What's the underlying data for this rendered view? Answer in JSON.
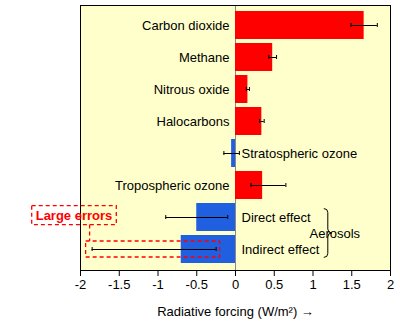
{
  "chart_data": {
    "type": "bar",
    "orientation": "horizontal",
    "categories": [
      "Carbon dioxide",
      "Methane",
      "Nitrous oxide",
      "Halocarbons",
      "Stratospheric ozone",
      "Tropospheric ozone",
      "Direct effect",
      "Indirect effect"
    ],
    "values": [
      1.66,
      0.48,
      0.16,
      0.34,
      -0.05,
      0.35,
      -0.5,
      -0.7
    ],
    "error_low": [
      1.49,
      0.43,
      0.14,
      0.31,
      -0.15,
      0.2,
      -0.9,
      -1.85
    ],
    "error_high": [
      1.83,
      0.53,
      0.18,
      0.37,
      0.05,
      0.65,
      -0.1,
      -0.25
    ],
    "colors": [
      "#ff0000",
      "#ff0000",
      "#ff0000",
      "#ff0000",
      "#1f5fe0",
      "#ff0000",
      "#1f5fe0",
      "#1f5fe0"
    ],
    "xlabel": "Radiative forcing (W/m²)",
    "xlim": [
      -2,
      2
    ],
    "xticks": [
      -2,
      -1.5,
      -1,
      -0.5,
      0,
      0.5,
      1,
      1.5,
      2
    ],
    "tick_labels": "x",
    "grid": false,
    "annotations": [
      {
        "text": "Large errors",
        "category": "Indirect effect"
      }
    ],
    "groups": [
      {
        "label": "Aerosols",
        "categories": [
          "Direct effect",
          "Indirect effect"
        ]
      }
    ]
  }
}
